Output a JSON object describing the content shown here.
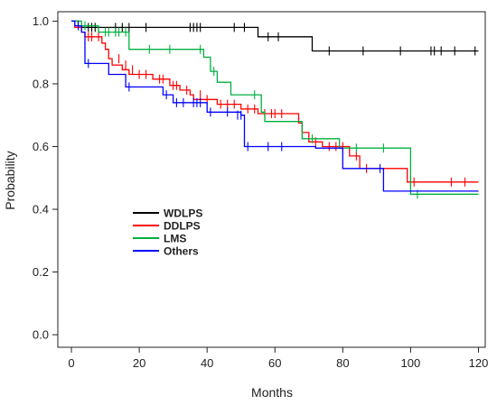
{
  "chart_data": {
    "type": "line",
    "subtype": "kaplan-meier step survival curves",
    "xlabel": "Months",
    "ylabel": "Probability",
    "xlim": [
      -4,
      122
    ],
    "ylim": [
      -0.04,
      1.03
    ],
    "xticks": [
      0,
      20,
      40,
      60,
      80,
      100,
      120
    ],
    "yticks": [
      0.0,
      0.2,
      0.4,
      0.6,
      0.8,
      1.0
    ],
    "ytick_labels": [
      "0.0",
      "0.2",
      "0.4",
      "0.6",
      "0.8",
      "1.0"
    ],
    "grid": false,
    "legend_position": "center-left",
    "series": [
      {
        "name": "WDLPS",
        "color": "#000000",
        "steps": [
          [
            0,
            1.0
          ],
          [
            2,
            0.98
          ],
          [
            55,
            0.95
          ],
          [
            71,
            0.905
          ],
          [
            120,
            0.905
          ]
        ],
        "censored": [
          [
            5,
            0.98
          ],
          [
            6,
            0.98
          ],
          [
            7,
            0.98
          ],
          [
            13,
            0.98
          ],
          [
            15,
            0.98
          ],
          [
            17,
            0.98
          ],
          [
            22,
            0.98
          ],
          [
            35,
            0.98
          ],
          [
            36,
            0.98
          ],
          [
            37,
            0.98
          ],
          [
            38,
            0.98
          ],
          [
            48,
            0.98
          ],
          [
            51,
            0.98
          ],
          [
            58,
            0.95
          ],
          [
            61,
            0.95
          ],
          [
            76,
            0.905
          ],
          [
            86,
            0.905
          ],
          [
            97,
            0.905
          ],
          [
            106,
            0.905
          ],
          [
            107,
            0.905
          ],
          [
            109,
            0.905
          ],
          [
            113,
            0.905
          ],
          [
            119,
            0.905
          ]
        ]
      },
      {
        "name": "DDLPS",
        "color": "#ff0000",
        "steps": [
          [
            0,
            1.0
          ],
          [
            1,
            0.98
          ],
          [
            3,
            0.965
          ],
          [
            4,
            0.95
          ],
          [
            9,
            0.93
          ],
          [
            10,
            0.91
          ],
          [
            11,
            0.88
          ],
          [
            12,
            0.86
          ],
          [
            15,
            0.845
          ],
          [
            17,
            0.83
          ],
          [
            24,
            0.815
          ],
          [
            29,
            0.795
          ],
          [
            32,
            0.78
          ],
          [
            35,
            0.765
          ],
          [
            36,
            0.75
          ],
          [
            43,
            0.735
          ],
          [
            50,
            0.72
          ],
          [
            55,
            0.705
          ],
          [
            67,
            0.675
          ],
          [
            68,
            0.645
          ],
          [
            70,
            0.615
          ],
          [
            74,
            0.6
          ],
          [
            79,
            0.6
          ],
          [
            82,
            0.57
          ],
          [
            85,
            0.53
          ],
          [
            99,
            0.487
          ],
          [
            120,
            0.487
          ]
        ],
        "censored": [
          [
            5,
            0.95
          ],
          [
            6,
            0.95
          ],
          [
            8,
            0.95
          ],
          [
            14,
            0.88
          ],
          [
            16,
            0.86
          ],
          [
            18,
            0.845
          ],
          [
            20,
            0.83
          ],
          [
            22,
            0.83
          ],
          [
            26,
            0.815
          ],
          [
            27,
            0.815
          ],
          [
            30,
            0.795
          ],
          [
            31,
            0.795
          ],
          [
            34,
            0.78
          ],
          [
            38,
            0.765
          ],
          [
            40,
            0.75
          ],
          [
            44,
            0.735
          ],
          [
            46,
            0.735
          ],
          [
            48,
            0.735
          ],
          [
            52,
            0.72
          ],
          [
            54,
            0.72
          ],
          [
            57,
            0.705
          ],
          [
            59,
            0.705
          ],
          [
            60,
            0.705
          ],
          [
            62,
            0.705
          ],
          [
            72,
            0.615
          ],
          [
            76,
            0.6
          ],
          [
            78,
            0.6
          ],
          [
            80,
            0.6
          ],
          [
            84,
            0.57
          ],
          [
            87,
            0.53
          ],
          [
            100,
            0.487
          ],
          [
            101,
            0.487
          ],
          [
            112,
            0.487
          ],
          [
            116,
            0.487
          ]
        ]
      },
      {
        "name": "LMS",
        "color": "#00b040",
        "steps": [
          [
            0,
            1.0
          ],
          [
            3,
            0.985
          ],
          [
            8,
            0.965
          ],
          [
            17,
            0.91
          ],
          [
            39,
            0.885
          ],
          [
            41,
            0.84
          ],
          [
            43,
            0.805
          ],
          [
            47,
            0.765
          ],
          [
            56,
            0.71
          ],
          [
            57,
            0.68
          ],
          [
            68,
            0.625
          ],
          [
            79,
            0.595
          ],
          [
            100,
            0.448
          ],
          [
            120,
            0.448
          ]
        ],
        "censored": [
          [
            4,
            0.985
          ],
          [
            10,
            0.965
          ],
          [
            11,
            0.965
          ],
          [
            13,
            0.965
          ],
          [
            14,
            0.965
          ],
          [
            16,
            0.965
          ],
          [
            23,
            0.91
          ],
          [
            29,
            0.91
          ],
          [
            38,
            0.91
          ],
          [
            42,
            0.84
          ],
          [
            54,
            0.765
          ],
          [
            71,
            0.625
          ],
          [
            84,
            0.595
          ],
          [
            92,
            0.595
          ],
          [
            102,
            0.448
          ]
        ]
      },
      {
        "name": "Others",
        "color": "#0000ff",
        "steps": [
          [
            0,
            1.0
          ],
          [
            1,
            0.985
          ],
          [
            3,
            0.965
          ],
          [
            4,
            0.865
          ],
          [
            7,
            0.865
          ],
          [
            11,
            0.83
          ],
          [
            16,
            0.79
          ],
          [
            27,
            0.765
          ],
          [
            30,
            0.74
          ],
          [
            40,
            0.71
          ],
          [
            50,
            0.7
          ],
          [
            51,
            0.6
          ],
          [
            72,
            0.595
          ],
          [
            80,
            0.53
          ],
          [
            92,
            0.458
          ],
          [
            120,
            0.458
          ]
        ],
        "censored": [
          [
            2,
            0.985
          ],
          [
            5,
            0.865
          ],
          [
            17,
            0.79
          ],
          [
            28,
            0.765
          ],
          [
            31,
            0.74
          ],
          [
            33,
            0.74
          ],
          [
            36,
            0.74
          ],
          [
            37,
            0.74
          ],
          [
            38,
            0.74
          ],
          [
            41,
            0.71
          ],
          [
            46,
            0.71
          ],
          [
            49,
            0.7
          ],
          [
            50,
            0.7
          ],
          [
            52,
            0.6
          ],
          [
            58,
            0.6
          ],
          [
            62,
            0.6
          ],
          [
            91,
            0.53
          ]
        ]
      }
    ]
  }
}
